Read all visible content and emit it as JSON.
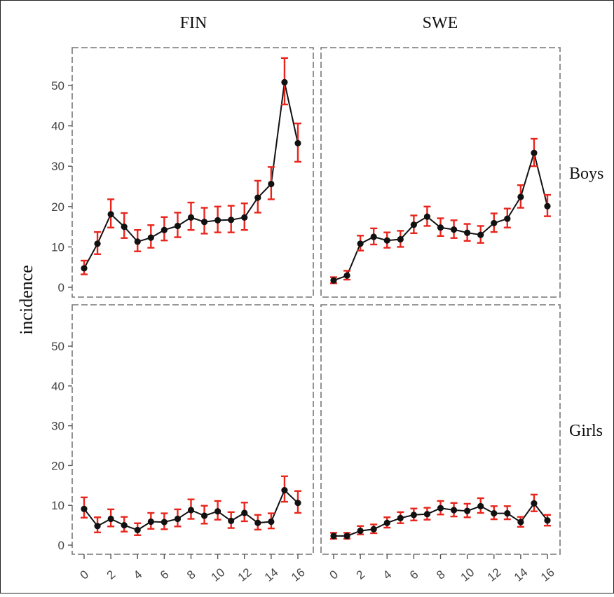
{
  "chart_data": {
    "type": "line",
    "ylabel": "incidence",
    "columns": [
      "FIN",
      "SWE"
    ],
    "rows": [
      "Boys",
      "Girls"
    ],
    "x_ticks": [
      "0",
      "2",
      "4",
      "6",
      "8",
      "10",
      "12",
      "14",
      "16"
    ],
    "y_ticks": [
      "0",
      "10",
      "20",
      "30",
      "40",
      "50"
    ],
    "xlim": [
      0,
      16
    ],
    "ylim": [
      0,
      57
    ],
    "grid": false,
    "colors": {
      "line": "#111111",
      "point": "#111111",
      "error_bar": "#e8251c",
      "panel_border": "#777777"
    },
    "x": [
      0,
      1,
      2,
      3,
      4,
      5,
      6,
      7,
      8,
      9,
      10,
      11,
      12,
      13,
      14,
      15,
      16
    ],
    "panels": [
      {
        "column": "FIN",
        "row": "Boys",
        "values": [
          4.7,
          10.8,
          18.1,
          15.0,
          11.3,
          12.3,
          14.2,
          15.2,
          17.3,
          16.2,
          16.6,
          16.7,
          17.3,
          22.2,
          25.6,
          50.8,
          35.7
        ],
        "lower": [
          3.2,
          8.2,
          14.8,
          12.2,
          8.9,
          9.8,
          11.6,
          12.4,
          14.2,
          13.3,
          13.6,
          13.6,
          14.2,
          18.5,
          21.8,
          45.3,
          31.1
        ],
        "upper": [
          6.6,
          13.7,
          21.8,
          18.4,
          14.2,
          15.4,
          17.4,
          18.5,
          21.0,
          19.7,
          20.0,
          20.2,
          20.8,
          26.4,
          29.8,
          56.8,
          40.6
        ]
      },
      {
        "column": "SWE",
        "row": "Boys",
        "values": [
          1.7,
          2.9,
          10.8,
          12.5,
          11.6,
          11.9,
          15.5,
          17.5,
          14.8,
          14.3,
          13.5,
          13.0,
          15.9,
          17.0,
          22.4,
          33.3,
          20.1
        ],
        "lower": [
          1.0,
          1.9,
          9.1,
          10.6,
          9.8,
          10.0,
          13.4,
          15.2,
          12.7,
          12.2,
          11.5,
          11.0,
          13.7,
          14.8,
          19.7,
          30.0,
          17.6
        ],
        "upper": [
          2.5,
          4.1,
          12.8,
          14.6,
          13.6,
          14.0,
          17.8,
          20.0,
          17.1,
          16.6,
          15.7,
          15.2,
          18.3,
          19.5,
          25.3,
          36.8,
          22.9
        ]
      },
      {
        "column": "FIN",
        "row": "Girls",
        "values": [
          9.1,
          4.8,
          6.6,
          5.0,
          3.8,
          5.9,
          5.8,
          6.6,
          8.8,
          7.4,
          8.5,
          6.1,
          8.1,
          5.6,
          5.9,
          13.8,
          10.6
        ],
        "lower": [
          6.9,
          3.2,
          4.7,
          3.4,
          2.5,
          4.1,
          4.0,
          4.7,
          6.6,
          5.4,
          6.4,
          4.3,
          6.0,
          3.9,
          4.2,
          10.9,
          8.1
        ],
        "upper": [
          12.0,
          7.0,
          9.0,
          7.1,
          5.5,
          8.1,
          8.0,
          9.0,
          11.5,
          9.9,
          11.1,
          8.3,
          10.7,
          7.6,
          8.0,
          17.3,
          13.6
        ]
      },
      {
        "column": "SWE",
        "row": "Girls",
        "values": [
          2.3,
          2.3,
          3.6,
          4.0,
          5.6,
          6.8,
          7.6,
          7.8,
          9.3,
          8.8,
          8.6,
          9.8,
          8.0,
          8.0,
          5.8,
          10.5,
          6.2
        ],
        "lower": [
          1.6,
          1.6,
          2.7,
          3.0,
          4.4,
          5.5,
          6.2,
          6.4,
          7.7,
          7.2,
          7.0,
          8.1,
          6.5,
          6.5,
          4.6,
          8.5,
          4.9
        ],
        "upper": [
          3.1,
          3.1,
          4.8,
          5.2,
          7.0,
          8.3,
          9.2,
          9.4,
          11.1,
          10.6,
          10.4,
          11.8,
          9.8,
          9.8,
          7.1,
          12.7,
          7.6
        ]
      }
    ]
  }
}
